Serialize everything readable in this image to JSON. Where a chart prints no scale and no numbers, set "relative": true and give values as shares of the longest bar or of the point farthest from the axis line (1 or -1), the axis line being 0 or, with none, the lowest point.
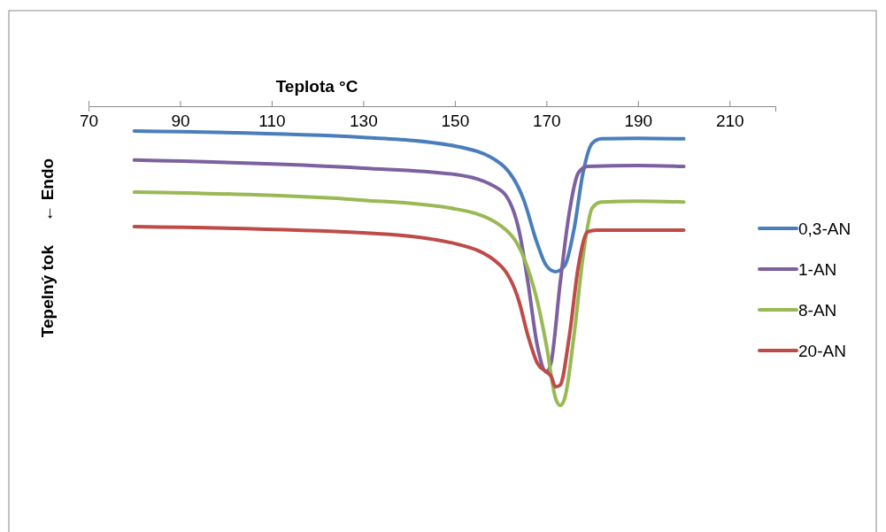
{
  "chart_data": {
    "type": "line",
    "xlabel": "Teplota °C",
    "ylabel": "Tepelný tok     ← Endo",
    "relative": true,
    "xlim": [
      70,
      220
    ],
    "xticks": [
      70,
      90,
      110,
      130,
      150,
      170,
      190,
      210
    ],
    "legend": "right",
    "grid": false,
    "marker": "none",
    "line_style": "solid",
    "series": [
      {
        "name": "0,3-AN",
        "color": "#4a7ebb",
        "x": [
          80,
          130,
          150,
          160,
          165,
          168,
          170,
          172,
          174,
          176,
          178,
          180,
          182,
          190,
          200
        ],
        "values": [
          -0.083,
          -0.104,
          -0.133,
          -0.192,
          -0.311,
          -0.459,
          -0.533,
          -0.553,
          -0.533,
          -0.414,
          -0.222,
          -0.124,
          -0.109,
          -0.107,
          -0.109
        ]
      },
      {
        "name": "1-AN",
        "color": "#7d60a0",
        "x": [
          80,
          130,
          150,
          160,
          164,
          166,
          168,
          170,
          171,
          173,
          175,
          177,
          179,
          190,
          200
        ],
        "values": [
          -0.18,
          -0.207,
          -0.228,
          -0.281,
          -0.414,
          -0.592,
          -0.799,
          -0.888,
          -0.858,
          -0.592,
          -0.355,
          -0.222,
          -0.201,
          -0.198,
          -0.201
        ]
      },
      {
        "name": "8-AN",
        "color": "#98b954",
        "x": [
          80,
          130,
          150,
          160,
          165,
          168,
          170,
          172,
          173,
          174,
          176,
          178,
          180,
          182,
          190,
          200
        ],
        "values": [
          -0.287,
          -0.314,
          -0.343,
          -0.399,
          -0.503,
          -0.651,
          -0.799,
          -0.976,
          -1,
          -0.976,
          -0.769,
          -0.503,
          -0.34,
          -0.32,
          -0.317,
          -0.32
        ]
      },
      {
        "name": "20-AN",
        "color": "#be4b48",
        "x": [
          80,
          130,
          150,
          160,
          164,
          166,
          168,
          170,
          171,
          172,
          173,
          175,
          177,
          179,
          181,
          190,
          200
        ],
        "values": [
          -0.402,
          -0.423,
          -0.459,
          -0.533,
          -0.651,
          -0.769,
          -0.858,
          -0.888,
          -0.902,
          -0.938,
          -0.932,
          -0.769,
          -0.533,
          -0.42,
          -0.414,
          -0.414,
          -0.414
        ]
      }
    ]
  }
}
